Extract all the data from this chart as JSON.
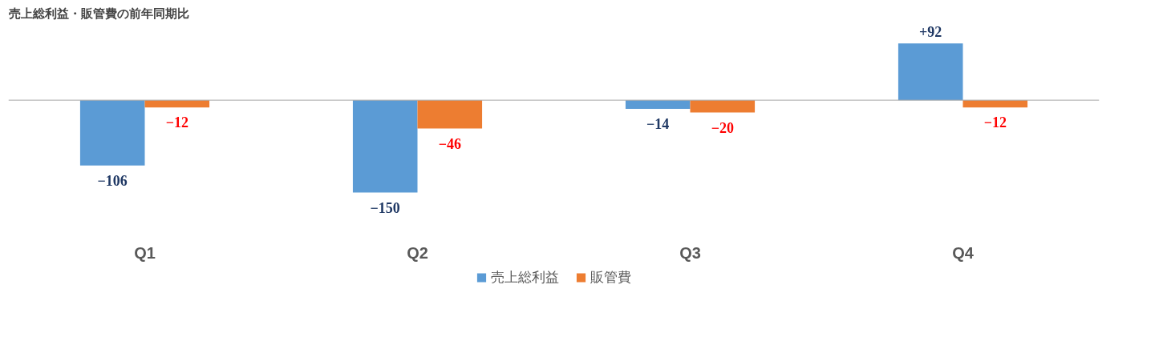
{
  "chart_data": {
    "type": "bar",
    "title": "売上総利益・販管費の前年同期比",
    "categories": [
      "Q1",
      "Q2",
      "Q3",
      "Q4"
    ],
    "series": [
      {
        "name": "売上総利益",
        "color": "#5b9bd5",
        "values": [
          -106,
          -150,
          -14,
          92
        ],
        "value_labels": [
          "−106",
          "−150",
          "−14",
          "+92"
        ]
      },
      {
        "name": "販管費",
        "color": "#ed7d31",
        "values": [
          -12,
          -46,
          -20,
          -12
        ],
        "value_labels": [
          "−12",
          "−46",
          "−20",
          "−12"
        ]
      }
    ],
    "grid": false,
    "legend": "bottom"
  }
}
